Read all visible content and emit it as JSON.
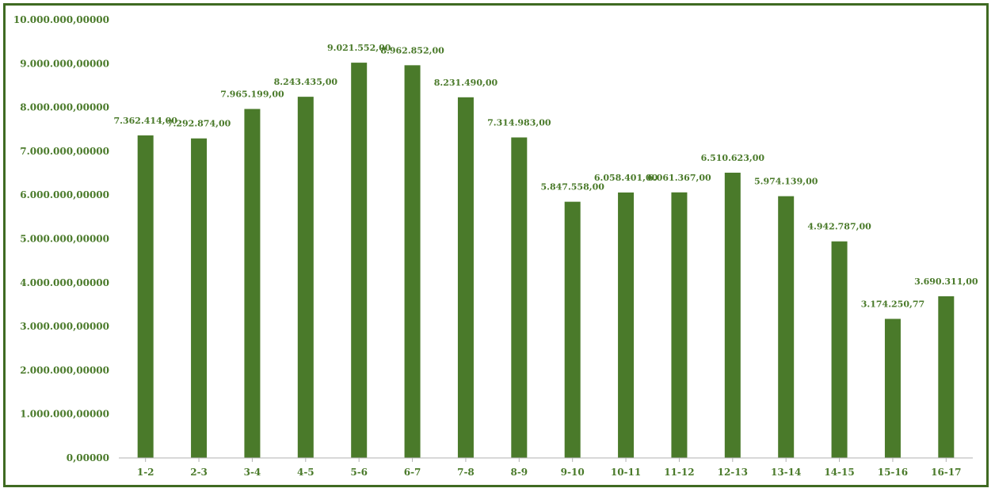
{
  "chart_data": {
    "type": "bar",
    "categories": [
      "1-2",
      "2-3",
      "3-4",
      "4-5",
      "5-6",
      "6-7",
      "7-8",
      "8-9",
      "9-10",
      "10-11",
      "11-12",
      "12-13",
      "13-14",
      "14-15",
      "15-16",
      "16-17"
    ],
    "values": [
      7362414,
      7292874,
      7965199,
      8243435,
      9021552,
      8962852,
      8231490,
      7314983,
      5847558,
      6058401,
      6061367,
      6510623,
      5974139,
      4942787,
      3174250.77,
      3690311
    ],
    "data_labels": [
      "7.362.414,00",
      "7.292.874,00",
      "7.965.199,00",
      "8.243.435,00",
      "9.021.552,00",
      "8.962.852,00",
      "8.231.490,00",
      "7.314.983,00",
      "5.847.558,00",
      "6.058.401,00",
      "6.061.367,00",
      "6.510.623,00",
      "5.974.139,00",
      "4.942.787,00",
      "3.174.250,77",
      "3.690.311,00"
    ],
    "y_ticks": [
      0,
      1000000,
      2000000,
      3000000,
      4000000,
      5000000,
      6000000,
      7000000,
      8000000,
      9000000,
      10000000
    ],
    "y_tick_labels": [
      "0,00000",
      "1.000.000,00000",
      "2.000.000,00000",
      "3.000.000,00000",
      "4.000.000,00000",
      "5.000.000,00000",
      "6.000.000,00000",
      "7.000.000,00000",
      "8.000.000,00000",
      "9.000.000,00000",
      "10.000.000,00000"
    ],
    "ylim": [
      0,
      10000000
    ],
    "title": "",
    "xlabel": "",
    "ylabel": "",
    "grid": false,
    "bar_color": "#4a7a2a",
    "axis_color": "#b0b0b0",
    "frame_color": "#3f6a22"
  }
}
